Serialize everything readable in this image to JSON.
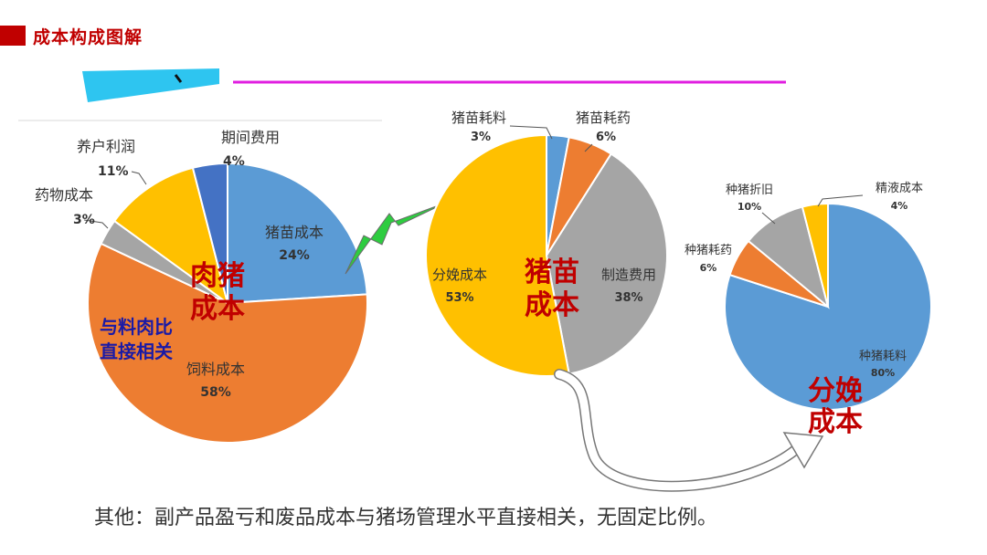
{
  "header": {
    "title": "成本构成图解"
  },
  "footer": {
    "note": "其他：副产品盈亏和废品成本与猪场管理水平直接相关，无固定比例。"
  },
  "colors": {
    "brand_red": "#c00000",
    "label_red": "#c00000",
    "label_navy": "#1a1aa6",
    "blue": "#5b9bd5",
    "orange": "#ed7d31",
    "gray": "#a5a5a5",
    "gold": "#ffc000",
    "dark_blue": "#4472c4",
    "lightning": "#2ecc40",
    "magenta_line": "#e01ee0",
    "cyan_shape": "#2ec5f0"
  },
  "chart_data": [
    {
      "type": "pie",
      "title": "",
      "center_label": "肉猪\n成本",
      "side_note": "与料肉比\n直接相关",
      "slices": [
        {
          "name": "猪苗成本",
          "value": 24,
          "label": "24%",
          "color": "#5b9bd5"
        },
        {
          "name": "饲料成本",
          "value": 58,
          "label": "58%",
          "color": "#ed7d31"
        },
        {
          "name": "药物成本",
          "value": 3,
          "label": "3%",
          "color": "#a5a5a5"
        },
        {
          "name": "养户利润",
          "value": 11,
          "label": "11%",
          "color": "#ffc000"
        },
        {
          "name": "期间费用",
          "value": 4,
          "label": "4%",
          "color": "#4472c4"
        }
      ]
    },
    {
      "type": "pie",
      "title": "",
      "center_label": "猪苗\n成本",
      "slices": [
        {
          "name": "猪苗耗料",
          "value": 3,
          "label": "3%",
          "color": "#5b9bd5"
        },
        {
          "name": "猪苗耗药",
          "value": 6,
          "label": "6%",
          "color": "#ed7d31"
        },
        {
          "name": "制造费用",
          "value": 38,
          "label": "38%",
          "color": "#a5a5a5"
        },
        {
          "name": "分娩成本",
          "value": 53,
          "label": "53%",
          "color": "#ffc000"
        }
      ]
    },
    {
      "type": "pie",
      "title": "",
      "center_label": "分娩\n成本",
      "slices": [
        {
          "name": "种猪耗料",
          "value": 80,
          "label": "80%",
          "color": "#5b9bd5"
        },
        {
          "name": "种猪耗药",
          "value": 6,
          "label": "6%",
          "color": "#ed7d31"
        },
        {
          "name": "种猪折旧",
          "value": 10,
          "label": "10%",
          "color": "#a5a5a5"
        },
        {
          "name": "精液成本",
          "value": 4,
          "label": "4%",
          "color": "#ffc000"
        }
      ]
    }
  ]
}
